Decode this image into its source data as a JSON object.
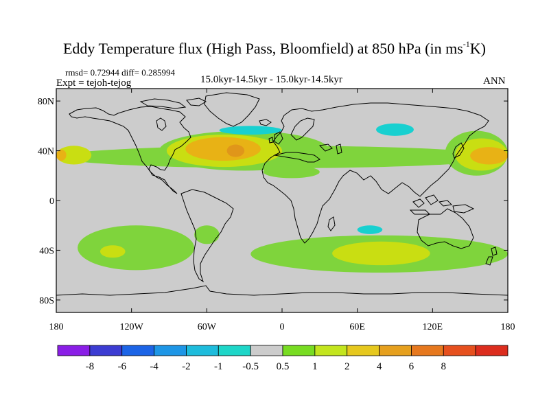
{
  "header": {
    "title_main": "Eddy Temperature flux (High Pass, Bloomfield) at 850 hPa (in ms",
    "title_sup": "-1",
    "title_tail": "K)",
    "rmsd_line": "rmsd= 0.72944 diff= 0.285994",
    "expt_line": "Expt = tejoh-tejog",
    "period": "15.0kyr-14.5kyr - 15.0kyr-14.5kyr",
    "season": "ANN"
  },
  "map": {
    "projection": "cylindrical equidistant",
    "lon_range": [
      -180,
      180
    ],
    "lat_range": [
      -90,
      90
    ],
    "background_color": "#cccccc",
    "y_ticks": [
      {
        "label": "80N",
        "lat": 80
      },
      {
        "label": "40N",
        "lat": 40
      },
      {
        "label": "0",
        "lat": 0
      },
      {
        "label": "40S",
        "lat": -40
      },
      {
        "label": "80S",
        "lat": -80
      }
    ],
    "x_ticks": [
      {
        "label": "180",
        "lon": -180
      },
      {
        "label": "120W",
        "lon": -120
      },
      {
        "label": "60W",
        "lon": -60
      },
      {
        "label": "0",
        "lon": 0
      },
      {
        "label": "60E",
        "lon": 60
      },
      {
        "label": "120E",
        "lon": 120
      },
      {
        "label": "180",
        "lon": 180
      }
    ],
    "regions": [
      {
        "name": "nh-storm-track-green",
        "color": "#7fd43c",
        "lon": [
          -178,
          175
        ],
        "lat": [
          44,
          26
        ],
        "w": 355,
        "h": 20
      },
      {
        "name": "nh-atlantic-green",
        "color": "#7fd43c",
        "lon": [
          -98,
          38
        ],
        "lat": [
          56,
          24
        ],
        "w": 138,
        "h": 32
      },
      {
        "name": "nh-atlantic-yellow",
        "color": "#c9de12",
        "lon": [
          -92,
          0
        ],
        "lat": [
          53,
          27
        ],
        "w": 92,
        "h": 26
      },
      {
        "name": "nh-atlantic-orange",
        "color": "#e8b215",
        "lon": [
          -77,
          -17
        ],
        "lat": [
          51,
          32
        ],
        "w": 60,
        "h": 19
      },
      {
        "name": "nh-atlantic-core",
        "color": "#e0961a",
        "lon": [
          -44,
          -30
        ],
        "lat": [
          45,
          35
        ],
        "w": 14,
        "h": 10
      },
      {
        "name": "nh-pacific-west-yellow",
        "color": "#c9de12",
        "lon": [
          -180,
          -152
        ],
        "lat": [
          44,
          29
        ],
        "w": 28,
        "h": 15
      },
      {
        "name": "nh-pacific-west-orange",
        "color": "#e8b215",
        "lon": [
          -180,
          -172
        ],
        "lat": [
          41,
          32
        ],
        "w": 8,
        "h": 9
      },
      {
        "name": "nh-pacific-east-green",
        "color": "#7fd43c",
        "lon": [
          130,
          180
        ],
        "lat": [
          56,
          20
        ],
        "w": 50,
        "h": 36
      },
      {
        "name": "nh-pacific-east-yellow",
        "color": "#c9de12",
        "lon": [
          138,
          180
        ],
        "lat": [
          50,
          24
        ],
        "w": 42,
        "h": 26
      },
      {
        "name": "nh-pacific-east-orange",
        "color": "#e8b215",
        "lon": [
          150,
          180
        ],
        "lat": [
          43,
          29
        ],
        "w": 30,
        "h": 14
      },
      {
        "name": "greenland-sea-cyan",
        "color": "#18d0d0",
        "lon": [
          -50,
          0
        ],
        "lat": [
          60,
          53
        ],
        "w": 50,
        "h": 7
      },
      {
        "name": "siberia-cyan",
        "color": "#18d0d0",
        "lon": [
          75,
          105
        ],
        "lat": [
          62,
          52
        ],
        "w": 30,
        "h": 10
      },
      {
        "name": "north-africa-green",
        "color": "#7fd43c",
        "lon": [
          -15,
          30
        ],
        "lat": [
          28,
          18
        ],
        "w": 45,
        "h": 10
      },
      {
        "name": "sh-pacific-green",
        "color": "#7fd43c",
        "lon": [
          -163,
          -70
        ],
        "lat": [
          -20,
          -56
        ],
        "w": 93,
        "h": 36
      },
      {
        "name": "sh-pacific-yellow",
        "color": "#c9de12",
        "lon": [
          -145,
          -125
        ],
        "lat": [
          -36,
          -46
        ],
        "w": 20,
        "h": 10
      },
      {
        "name": "south-america-green",
        "color": "#7fd43c",
        "lon": [
          -70,
          -50
        ],
        "lat": [
          -20,
          -35
        ],
        "w": 20,
        "h": 15
      },
      {
        "name": "sh-indian-green",
        "color": "#7fd43c",
        "lon": [
          -25,
          180
        ],
        "lat": [
          -28,
          -58
        ],
        "w": 205,
        "h": 30
      },
      {
        "name": "sh-indian-yellow",
        "color": "#c9de12",
        "lon": [
          40,
          118
        ],
        "lat": [
          -33,
          -52
        ],
        "w": 78,
        "h": 19
      },
      {
        "name": "sh-indian-cyan",
        "color": "#18d0d0",
        "lon": [
          60,
          80
        ],
        "lat": [
          -20,
          -27
        ],
        "w": 20,
        "h": 7
      }
    ]
  },
  "colorbar": {
    "colors": [
      "#8a1ee6",
      "#3c3cd2",
      "#1c64e6",
      "#1e96e6",
      "#1ebcdc",
      "#1ed6c8",
      "#cccccc",
      "#78dc22",
      "#c3e51e",
      "#e6c81e",
      "#e6a01e",
      "#e6781e",
      "#e6501e",
      "#dc2d1e"
    ],
    "labels": [
      "-8",
      "-6",
      "-4",
      "-2",
      "-1",
      "-0.5",
      "0.5",
      "1",
      "2",
      "4",
      "6",
      "8"
    ]
  }
}
